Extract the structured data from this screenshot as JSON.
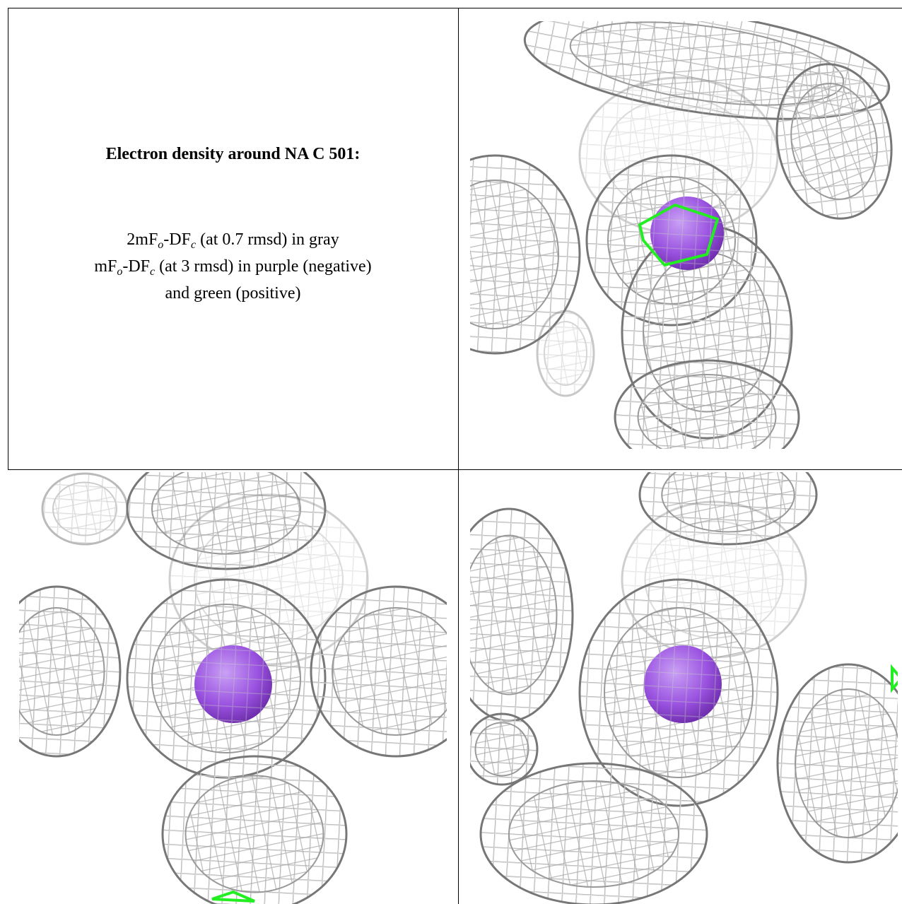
{
  "title": "Electron density around NA C 501:",
  "legend": [
    [
      "2mF",
      "o",
      "-DF",
      "c",
      " (at 0.7 rmsd) in gray"
    ],
    [
      "mF",
      "o",
      "-DF",
      "c",
      " (at 3 rmsd) in purple (negative)"
    ],
    [
      "and green (positive)"
    ]
  ]
}
